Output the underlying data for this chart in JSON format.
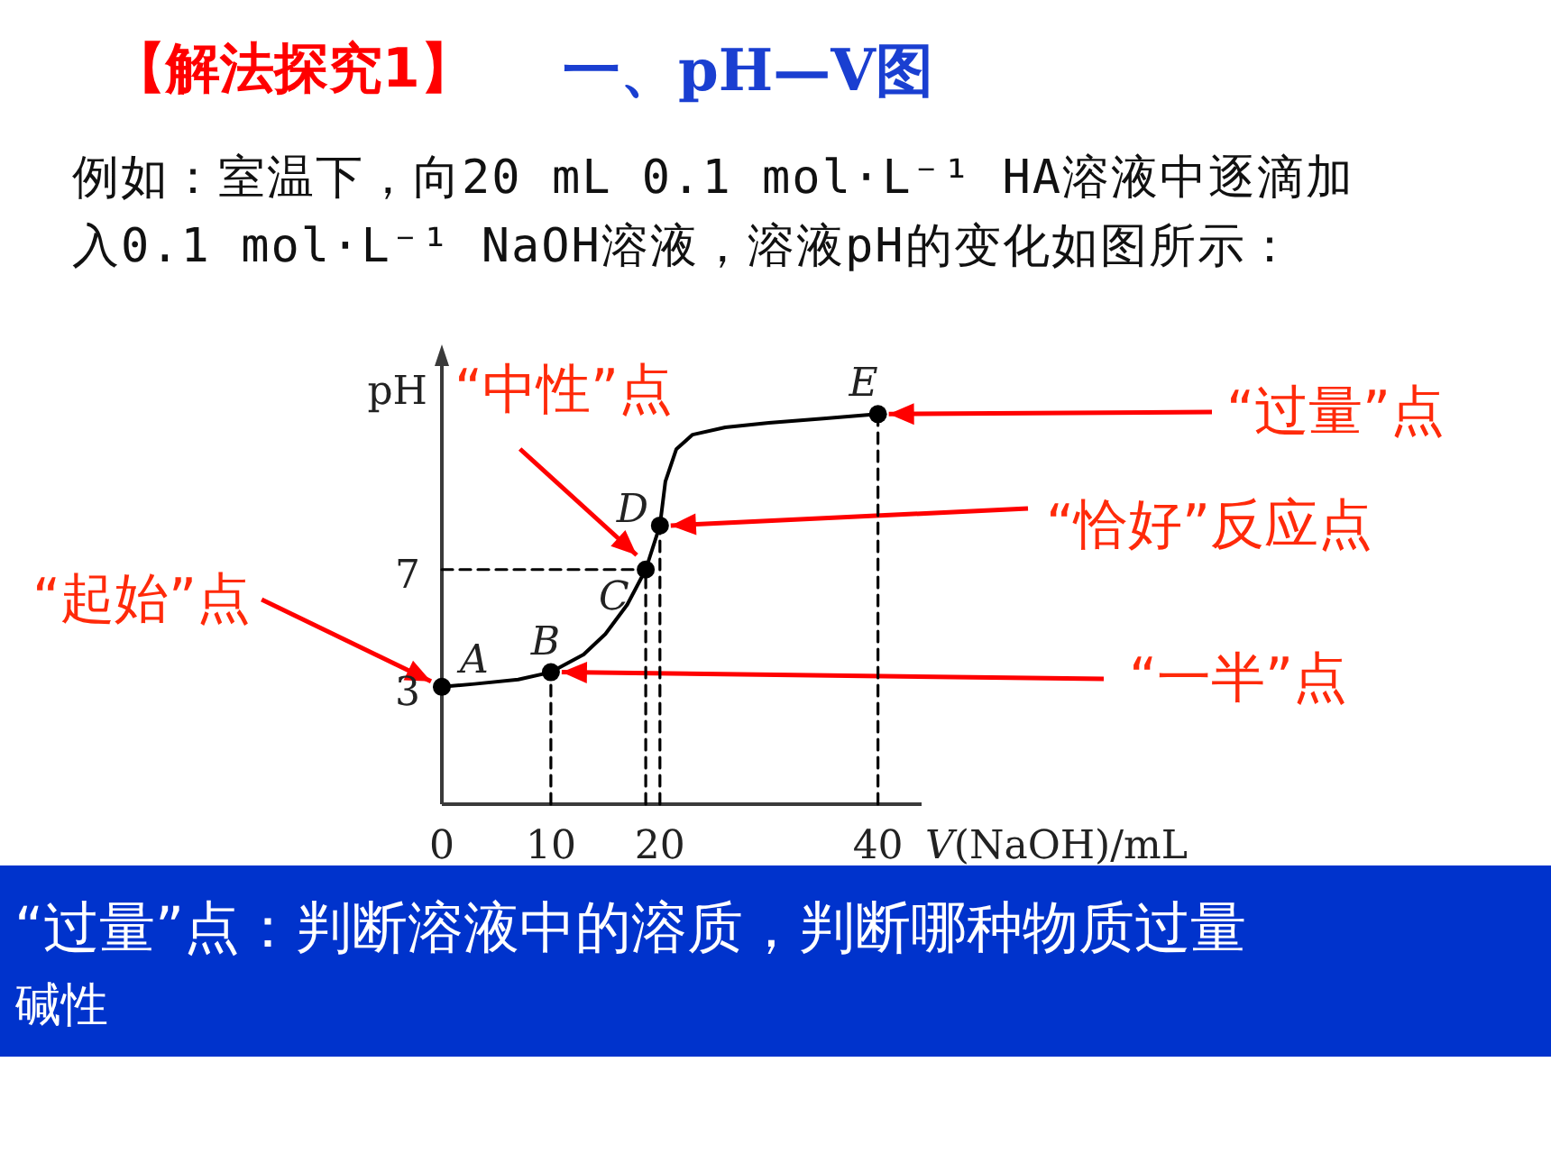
{
  "chart_data": {
    "type": "line",
    "title": "【解法探究1】",
    "subtitle": "一、pH—V图",
    "xlabel": "*V*(NaOH)/mL",
    "ylabel": "pH",
    "xlim": [
      0,
      44
    ],
    "ylim": [
      -1,
      14
    ],
    "xticks": [
      0,
      10,
      20,
      40
    ],
    "yticks": [
      3,
      7
    ],
    "series": [
      {
        "type": "line",
        "color": "#000000",
        "marker": "none",
        "line_style": "solid",
        "x": [
          0,
          3,
          7,
          10,
          13,
          15,
          17,
          18.7,
          20,
          20.5,
          21.5,
          23,
          26,
          30,
          35,
          40
        ],
        "values": [
          3,
          3.1,
          3.25,
          3.5,
          4.1,
          4.8,
          5.8,
          7,
          8.5,
          10,
          11.1,
          11.6,
          11.85,
          12,
          12.15,
          12.3
        ]
      },
      {
        "type": "scatter",
        "color": "#000000",
        "marker": "circle",
        "x": [
          0,
          10,
          18.7,
          20,
          40
        ],
        "values": [
          3,
          3.5,
          7,
          8.5,
          12.3
        ]
      },
      {
        "type": "line",
        "color": "#000000",
        "marker": "none",
        "line_style": "dashed",
        "x": [
          10,
          10
        ],
        "values": [
          -1,
          3.5
        ]
      },
      {
        "type": "line",
        "color": "#000000",
        "marker": "none",
        "line_style": "dashed",
        "x": [
          0,
          18.7
        ],
        "values": [
          7,
          7
        ]
      },
      {
        "type": "line",
        "color": "#000000",
        "marker": "none",
        "line_style": "dashed",
        "x": [
          18.7,
          18.7
        ],
        "values": [
          -1,
          7
        ]
      },
      {
        "type": "line",
        "color": "#000000",
        "marker": "none",
        "line_style": "dashed",
        "x": [
          20,
          20
        ],
        "values": [
          -1,
          8.5
        ]
      },
      {
        "type": "line",
        "color": "#000000",
        "marker": "none",
        "line_style": "dashed",
        "x": [
          40,
          40
        ],
        "values": [
          -1,
          12.3
        ]
      }
    ],
    "annotations": [
      "例如：室温下，向20 mL 0.1 mol·L⁻¹ HA溶液中逐滴加入0.1 mol·L⁻¹ NaOH溶液，溶液pH的变化如图所示：",
      {
        "text": "*A*",
        "x": 0,
        "y": 3
      },
      {
        "text": "*B*",
        "x": 10,
        "y": 3.5
      },
      {
        "text": "*C*",
        "x": 18.7,
        "y": 7
      },
      {
        "text": "*D*",
        "x": 20,
        "y": 8.5
      },
      {
        "text": "*E*",
        "x": 40,
        "y": 12.3
      },
      {
        "text": "“起始”点",
        "x": 0,
        "y": 3
      },
      {
        "text": "“一半”点",
        "x": 10,
        "y": 3.5
      },
      {
        "text": "“中性”点",
        "x": 18.7,
        "y": 7
      },
      {
        "text": "“恰好”反应点",
        "x": 20,
        "y": 8.5
      },
      {
        "text": "“过量”点",
        "x": 40,
        "y": 12.3
      },
      "“过量”点：判断溶液中的溶质，判断哪种物质过量",
      "碱性"
    ]
  }
}
